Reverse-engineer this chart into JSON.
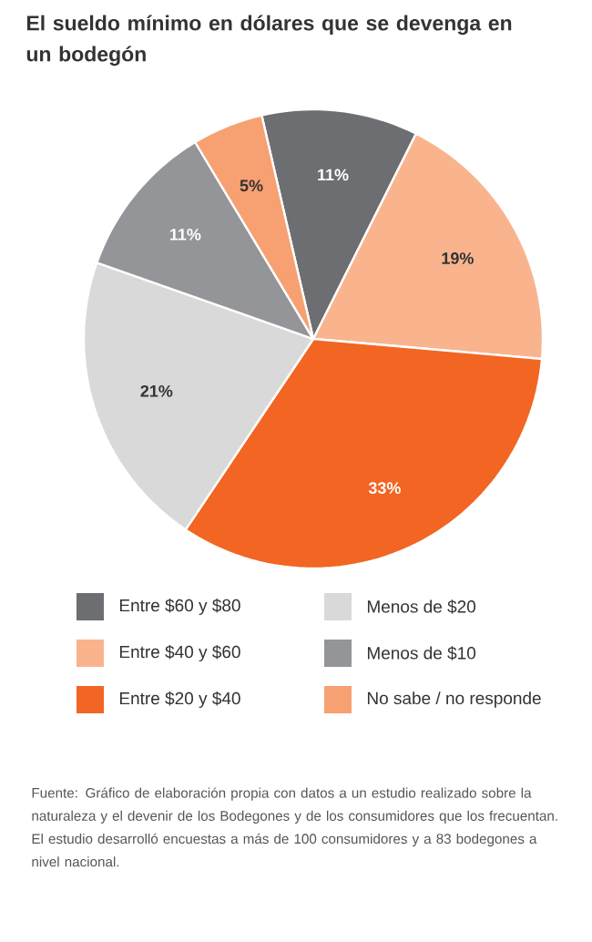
{
  "chart_data": {
    "type": "pie",
    "title": "El sueldo mínimo en dólares que se devenga en un bodegón",
    "categories": [
      "Entre $60 y $80",
      "Entre $40 y $60",
      "Entre $20 y $40",
      "Menos de $20",
      "Menos de $10",
      "No sabe / no responde"
    ],
    "values": [
      11,
      19,
      33,
      21,
      11,
      5
    ],
    "value_labels": [
      "11%",
      "19%",
      "33%",
      "21%",
      "11%",
      "5%"
    ],
    "colors": [
      "#6d6e71",
      "#f9b48e",
      "#f26522",
      "#d9d9da",
      "#939598",
      "#f7a072"
    ],
    "legend": "bottom",
    "annotations": [
      "Fuente: Gráfico de elaboración propia con datos a un estudio realizado sobre la naturaleza y el devenir de los Bodegones y de los consumidores que los frecuentan. El estudio desarrolló encuestas a más de 100 consumidores y a 83 bodegones a nivel nacional."
    ]
  }
}
